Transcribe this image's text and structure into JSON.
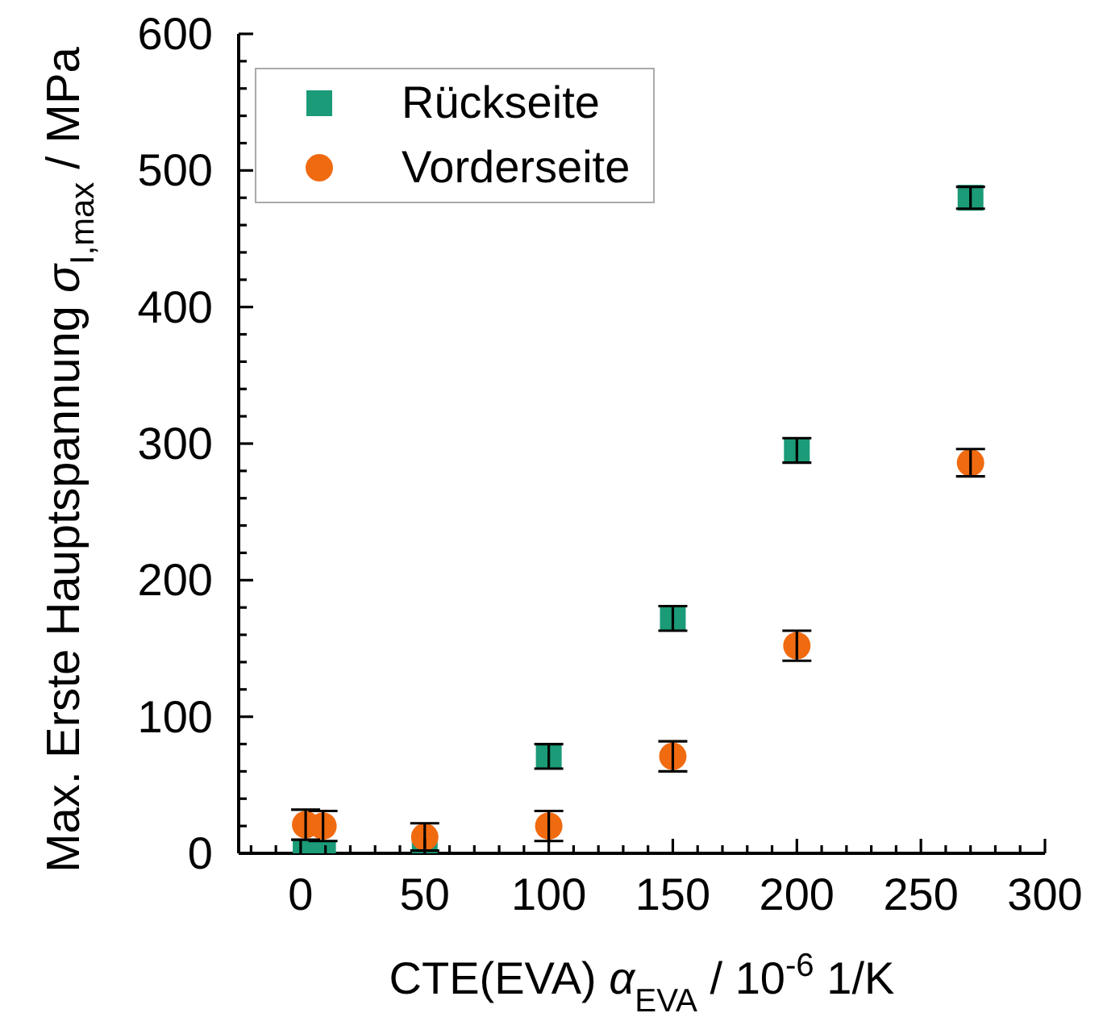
{
  "chart_data": {
    "type": "scatter",
    "xlabel": "CTE(EVA) α$_{EVA}$ / 10$^{-6}$ 1/K",
    "ylabel": "Max. Erste Hauptspannung σ$_{I,max}$ / MPa",
    "x": [
      2,
      9,
      50,
      100,
      150,
      200,
      270
    ],
    "xlim": [
      -25,
      300
    ],
    "xticks": [
      {
        "value": -20,
        "label": null
      },
      {
        "value": -10,
        "label": null
      },
      0,
      {
        "value": 10,
        "label": null
      },
      {
        "value": 20,
        "label": null
      },
      {
        "value": 30,
        "label": null
      },
      {
        "value": 40,
        "label": null
      },
      50,
      {
        "value": 60,
        "label": null
      },
      {
        "value": 70,
        "label": null
      },
      {
        "value": 80,
        "label": null
      },
      {
        "value": 90,
        "label": null
      },
      100,
      {
        "value": 110,
        "label": null
      },
      {
        "value": 120,
        "label": null
      },
      {
        "value": 130,
        "label": null
      },
      {
        "value": 140,
        "label": null
      },
      150,
      {
        "value": 160,
        "label": null
      },
      {
        "value": 170,
        "label": null
      },
      {
        "value": 180,
        "label": null
      },
      {
        "value": 190,
        "label": null
      },
      200,
      {
        "value": 210,
        "label": null
      },
      {
        "value": 220,
        "label": null
      },
      {
        "value": 230,
        "label": null
      },
      {
        "value": 240,
        "label": null
      },
      250,
      {
        "value": 260,
        "label": null
      },
      {
        "value": 270,
        "label": null
      },
      {
        "value": 280,
        "label": null
      },
      {
        "value": 290,
        "label": null
      },
      300
    ],
    "ylim": [
      0,
      600
    ],
    "yticks": [
      0,
      {
        "value": 20,
        "label": null
      },
      {
        "value": 40,
        "label": null
      },
      {
        "value": 60,
        "label": null
      },
      {
        "value": 80,
        "label": null
      },
      100,
      {
        "value": 120,
        "label": null
      },
      {
        "value": 140,
        "label": null
      },
      {
        "value": 160,
        "label": null
      },
      {
        "value": 180,
        "label": null
      },
      200,
      {
        "value": 220,
        "label": null
      },
      {
        "value": 240,
        "label": null
      },
      {
        "value": 260,
        "label": null
      },
      {
        "value": 280,
        "label": null
      },
      300,
      {
        "value": 320,
        "label": null
      },
      {
        "value": 340,
        "label": null
      },
      {
        "value": 360,
        "label": null
      },
      {
        "value": 380,
        "label": null
      },
      400,
      {
        "value": 420,
        "label": null
      },
      {
        "value": 440,
        "label": null
      },
      {
        "value": 460,
        "label": null
      },
      {
        "value": 480,
        "label": null
      },
      500,
      {
        "value": 520,
        "label": null
      },
      {
        "value": 540,
        "label": null
      },
      {
        "value": 560,
        "label": null
      },
      {
        "value": 580,
        "label": null
      },
      600
    ],
    "legend": "top left",
    "series": [
      {
        "name": "Rückseite",
        "color": "#1b9b78",
        "marker": "square",
        "values": [
          0,
          0,
          0,
          71,
          172,
          295,
          480
        ],
        "errors": [
          null,
          null,
          null,
          9,
          9,
          9,
          8
        ]
      },
      {
        "name": "Vorderseite",
        "color": "#f06a10",
        "marker": "circle",
        "values": [
          21,
          20,
          12,
          20,
          71,
          152,
          286
        ],
        "errors": [
          11,
          11,
          10,
          11,
          11,
          11,
          10
        ]
      }
    ]
  }
}
